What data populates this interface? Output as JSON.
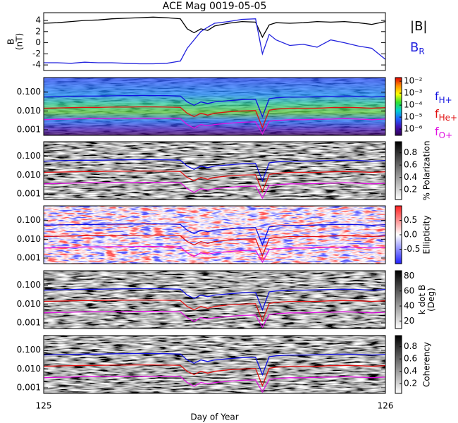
{
  "chart_data": [
    {
      "type": "line",
      "title": "ACE Mag 0019-05-05",
      "ylabel": [
        "B",
        "(nT)"
      ],
      "xlim": [
        125,
        126
      ],
      "ylim": [
        -5,
        5.4
      ],
      "yticks": [
        4,
        2,
        0,
        -2,
        -4
      ],
      "x": [
        125,
        125.04,
        125.08,
        125.12,
        125.16,
        125.2,
        125.24,
        125.28,
        125.32,
        125.36,
        125.4,
        125.42,
        125.44,
        125.46,
        125.48,
        125.5,
        125.54,
        125.58,
        125.62,
        125.64,
        125.66,
        125.68,
        125.72,
        125.76,
        125.8,
        125.84,
        125.88,
        125.92,
        125.96,
        126
      ],
      "series": [
        {
          "name": "|B|",
          "color": "#000000",
          "values": [
            3.5,
            3.6,
            3.8,
            4.0,
            4.1,
            4.3,
            4.4,
            4.5,
            4.6,
            4.5,
            4.3,
            2.5,
            1.8,
            2.5,
            2.2,
            3.0,
            3.5,
            3.8,
            3.7,
            1.0,
            3.2,
            3.6,
            3.5,
            3.6,
            3.8,
            3.7,
            3.8,
            3.6,
            3.3,
            3.8
          ]
        },
        {
          "name": "B",
          "subscript": "R",
          "color": "#2222dd",
          "values": [
            -3.6,
            -3.6,
            -3.7,
            -3.5,
            -3.6,
            -3.6,
            -3.7,
            -3.8,
            -3.8,
            -3.7,
            -3.3,
            -1.0,
            0.5,
            2.0,
            2.8,
            3.5,
            3.8,
            4.2,
            4.3,
            -2.0,
            1.5,
            0.5,
            -0.5,
            -0.3,
            -0.8,
            0.5,
            0.0,
            -0.6,
            -1.0,
            -3.0
          ]
        }
      ]
    },
    {
      "type": "spectrogram",
      "log_y": true,
      "xlim": [
        125,
        126
      ],
      "ylim": [
        0.0005,
        0.6
      ],
      "yticks": [
        {
          "value": 0.1,
          "label": "0.100"
        },
        {
          "value": 0.01,
          "label": "0.010"
        },
        {
          "value": 0.001,
          "label": "0.001"
        }
      ],
      "colorbar": {
        "log": true,
        "clim": [
          3e-07,
          0.02
        ],
        "colors": [
          "#e00000",
          "#ff9000",
          "#ffff00",
          "#30e030",
          "#00d0d0",
          "#2060ff",
          "#4010b0",
          "#300050"
        ],
        "ticks": [
          {
            "value": 0.01,
            "label": "10⁻²"
          },
          {
            "value": 0.001,
            "label": "10⁻³"
          },
          {
            "value": 0.0001,
            "label": "10⁻⁴"
          },
          {
            "value": 1e-05,
            "label": "10⁻⁵"
          },
          {
            "value": 1e-06,
            "label": "10⁻⁶"
          }
        ]
      },
      "x": [
        125,
        125.04,
        125.08,
        125.12,
        125.16,
        125.2,
        125.24,
        125.28,
        125.32,
        125.36,
        125.4,
        125.42,
        125.44,
        125.46,
        125.48,
        125.5,
        125.54,
        125.58,
        125.62,
        125.64,
        125.66,
        125.68,
        125.72,
        125.76,
        125.8,
        125.84,
        125.88,
        125.92,
        125.96,
        126
      ],
      "series": [
        {
          "name": "f",
          "subscript": "H+",
          "color": "#1010e0",
          "values": [
            0.055,
            0.058,
            0.06,
            0.062,
            0.062,
            0.064,
            0.065,
            0.066,
            0.066,
            0.065,
            0.062,
            0.03,
            0.02,
            0.03,
            0.025,
            0.03,
            0.035,
            0.04,
            0.042,
            0.005,
            0.045,
            0.05,
            0.055,
            0.055,
            0.057,
            0.06,
            0.062,
            0.06,
            0.055,
            0.06
          ]
        },
        {
          "name": "f",
          "subscript": "He+",
          "color": "#e01010",
          "values": [
            0.014,
            0.0145,
            0.015,
            0.0155,
            0.0155,
            0.016,
            0.016,
            0.0165,
            0.0165,
            0.016,
            0.0155,
            0.0075,
            0.005,
            0.0075,
            0.006,
            0.0075,
            0.009,
            0.01,
            0.0105,
            0.0013,
            0.011,
            0.0125,
            0.014,
            0.014,
            0.014,
            0.015,
            0.0155,
            0.015,
            0.014,
            0.015
          ]
        },
        {
          "name": "f",
          "subscript": "O+",
          "color": "#e010e0",
          "values": [
            0.0034,
            0.0036,
            0.0037,
            0.0039,
            0.0039,
            0.004,
            0.004,
            0.0041,
            0.0041,
            0.004,
            0.0039,
            0.0019,
            0.0012,
            0.0019,
            0.0016,
            0.0019,
            0.0022,
            0.0025,
            0.0026,
            0.0006,
            0.0028,
            0.0031,
            0.0034,
            0.0034,
            0.0036,
            0.0037,
            0.0039,
            0.0037,
            0.0034,
            0.0037
          ]
        }
      ]
    },
    {
      "type": "spectrogram",
      "log_y": true,
      "xlim": [
        125,
        126
      ],
      "ylim": [
        0.0005,
        0.6
      ],
      "yticks": [
        {
          "value": 0.1,
          "label": "0.100"
        },
        {
          "value": 0.01,
          "label": "0.010"
        },
        {
          "value": 0.001,
          "label": "0.001"
        }
      ],
      "colorbar": {
        "label": [
          "% Polarization"
        ],
        "clim": [
          0.04,
          0.98
        ],
        "colors": [
          "#000000",
          "#ffffff"
        ],
        "ticks": [
          0.8,
          0.6,
          0.4,
          0.2
        ]
      },
      "x": [
        125,
        125.04,
        125.08,
        125.12,
        125.16,
        125.2,
        125.24,
        125.28,
        125.32,
        125.36,
        125.4,
        125.42,
        125.44,
        125.46,
        125.48,
        125.5,
        125.54,
        125.58,
        125.62,
        125.64,
        125.66,
        125.68,
        125.72,
        125.76,
        125.8,
        125.84,
        125.88,
        125.92,
        125.96,
        126
      ],
      "series": [
        {
          "color": "#1010e0",
          "values": [
            0.055,
            0.058,
            0.06,
            0.062,
            0.062,
            0.064,
            0.065,
            0.066,
            0.066,
            0.065,
            0.062,
            0.03,
            0.02,
            0.03,
            0.025,
            0.03,
            0.035,
            0.04,
            0.042,
            0.005,
            0.045,
            0.05,
            0.055,
            0.055,
            0.057,
            0.06,
            0.062,
            0.06,
            0.055,
            0.06
          ]
        },
        {
          "color": "#e01010",
          "values": [
            0.014,
            0.0145,
            0.015,
            0.0155,
            0.0155,
            0.016,
            0.016,
            0.0165,
            0.0165,
            0.016,
            0.0155,
            0.0075,
            0.005,
            0.0075,
            0.006,
            0.0075,
            0.009,
            0.01,
            0.0105,
            0.0013,
            0.011,
            0.0125,
            0.014,
            0.014,
            0.014,
            0.015,
            0.0155,
            0.015,
            0.014,
            0.015
          ]
        },
        {
          "color": "#e010e0",
          "values": [
            0.0034,
            0.0036,
            0.0037,
            0.0039,
            0.0039,
            0.004,
            0.004,
            0.0041,
            0.0041,
            0.004,
            0.0039,
            0.0019,
            0.0012,
            0.0019,
            0.0016,
            0.0019,
            0.0022,
            0.0025,
            0.0026,
            0.0006,
            0.0028,
            0.0031,
            0.0034,
            0.0034,
            0.0036,
            0.0037,
            0.0039,
            0.0037,
            0.0034,
            0.0037
          ]
        }
      ]
    },
    {
      "type": "spectrogram",
      "log_y": true,
      "xlim": [
        125,
        126
      ],
      "ylim": [
        0.0005,
        0.6
      ],
      "yticks": [
        {
          "value": 0.1,
          "label": "0.100"
        },
        {
          "value": 0.01,
          "label": "0.010"
        },
        {
          "value": 0.001,
          "label": "0.001"
        }
      ],
      "colorbar": {
        "label": [
          "Ellipticity"
        ],
        "clim": [
          -1,
          1
        ],
        "colors": [
          "#ff2020",
          "#ffffff",
          "#2020ff"
        ],
        "ticks": [
          0.5,
          {
            "value": 0,
            "label": "0.0"
          },
          -0.5
        ]
      },
      "x": [
        125,
        125.04,
        125.08,
        125.12,
        125.16,
        125.2,
        125.24,
        125.28,
        125.32,
        125.36,
        125.4,
        125.42,
        125.44,
        125.46,
        125.48,
        125.5,
        125.54,
        125.58,
        125.62,
        125.64,
        125.66,
        125.68,
        125.72,
        125.76,
        125.8,
        125.84,
        125.88,
        125.92,
        125.96,
        126
      ],
      "series": [
        {
          "color": "#1010e0",
          "values": [
            0.055,
            0.058,
            0.06,
            0.062,
            0.062,
            0.064,
            0.065,
            0.066,
            0.066,
            0.065,
            0.062,
            0.03,
            0.02,
            0.03,
            0.025,
            0.03,
            0.035,
            0.04,
            0.042,
            0.005,
            0.045,
            0.05,
            0.055,
            0.055,
            0.057,
            0.06,
            0.062,
            0.06,
            0.055,
            0.06
          ]
        },
        {
          "color": "#e01010",
          "values": [
            0.014,
            0.0145,
            0.015,
            0.0155,
            0.0155,
            0.016,
            0.016,
            0.0165,
            0.0165,
            0.016,
            0.0155,
            0.0075,
            0.005,
            0.0075,
            0.006,
            0.0075,
            0.009,
            0.01,
            0.0105,
            0.0013,
            0.011,
            0.0125,
            0.014,
            0.014,
            0.014,
            0.015,
            0.0155,
            0.015,
            0.014,
            0.015
          ]
        },
        {
          "color": "#e010e0",
          "values": [
            0.0034,
            0.0036,
            0.0037,
            0.0039,
            0.0039,
            0.004,
            0.004,
            0.0041,
            0.0041,
            0.004,
            0.0039,
            0.0019,
            0.0012,
            0.0019,
            0.0016,
            0.0019,
            0.0022,
            0.0025,
            0.0026,
            0.0006,
            0.0028,
            0.0031,
            0.0034,
            0.0034,
            0.0036,
            0.0037,
            0.0039,
            0.0037,
            0.0034,
            0.0037
          ]
        }
      ]
    },
    {
      "type": "spectrogram",
      "log_y": true,
      "xlim": [
        125,
        126
      ],
      "ylim": [
        0.0005,
        0.6
      ],
      "yticks": [
        {
          "value": 0.1,
          "label": "0.100"
        },
        {
          "value": 0.01,
          "label": "0.010"
        },
        {
          "value": 0.001,
          "label": "0.001"
        }
      ],
      "colorbar": {
        "label": [
          "k dot B",
          "(Deg)"
        ],
        "clim": [
          10,
          87
        ],
        "colors": [
          "#000000",
          "#ffffff"
        ],
        "ticks": [
          80,
          60,
          40,
          20
        ]
      },
      "x": [
        125,
        125.04,
        125.08,
        125.12,
        125.16,
        125.2,
        125.24,
        125.28,
        125.32,
        125.36,
        125.4,
        125.42,
        125.44,
        125.46,
        125.48,
        125.5,
        125.54,
        125.58,
        125.62,
        125.64,
        125.66,
        125.68,
        125.72,
        125.76,
        125.8,
        125.84,
        125.88,
        125.92,
        125.96,
        126
      ],
      "series": [
        {
          "color": "#1010e0",
          "values": [
            0.055,
            0.058,
            0.06,
            0.062,
            0.062,
            0.064,
            0.065,
            0.066,
            0.066,
            0.065,
            0.062,
            0.03,
            0.02,
            0.03,
            0.025,
            0.03,
            0.035,
            0.04,
            0.042,
            0.005,
            0.045,
            0.05,
            0.055,
            0.055,
            0.057,
            0.06,
            0.062,
            0.06,
            0.055,
            0.06
          ]
        },
        {
          "color": "#e01010",
          "values": [
            0.014,
            0.0145,
            0.015,
            0.0155,
            0.0155,
            0.016,
            0.016,
            0.0165,
            0.0165,
            0.016,
            0.0155,
            0.0075,
            0.005,
            0.0075,
            0.006,
            0.0075,
            0.009,
            0.01,
            0.0105,
            0.0013,
            0.011,
            0.0125,
            0.014,
            0.014,
            0.014,
            0.015,
            0.0155,
            0.015,
            0.014,
            0.015
          ]
        },
        {
          "color": "#e010e0",
          "values": [
            0.0034,
            0.0036,
            0.0037,
            0.0039,
            0.0039,
            0.004,
            0.004,
            0.0041,
            0.0041,
            0.004,
            0.0039,
            0.0019,
            0.0012,
            0.0019,
            0.0016,
            0.0019,
            0.0022,
            0.0025,
            0.0026,
            0.0006,
            0.0028,
            0.0031,
            0.0034,
            0.0034,
            0.0036,
            0.0037,
            0.0039,
            0.0037,
            0.0034,
            0.0037
          ]
        }
      ]
    },
    {
      "type": "spectrogram",
      "log_y": true,
      "xlim": [
        125,
        126
      ],
      "ylim": [
        0.0005,
        0.6
      ],
      "yticks": [
        {
          "value": 0.1,
          "label": "0.100"
        },
        {
          "value": 0.01,
          "label": "0.010"
        },
        {
          "value": 0.001,
          "label": "0.001"
        }
      ],
      "colorbar": {
        "label": [
          "Coherency"
        ],
        "clim": [
          0.04,
          0.98
        ],
        "colors": [
          "#000000",
          "#ffffff"
        ],
        "ticks": [
          0.8,
          0.6,
          0.4,
          0.2
        ]
      },
      "xlabel": "Day of Year",
      "xticks": [
        125,
        126
      ],
      "x": [
        125,
        125.04,
        125.08,
        125.12,
        125.16,
        125.2,
        125.24,
        125.28,
        125.32,
        125.36,
        125.4,
        125.42,
        125.44,
        125.46,
        125.48,
        125.5,
        125.54,
        125.58,
        125.62,
        125.64,
        125.66,
        125.68,
        125.72,
        125.76,
        125.8,
        125.84,
        125.88,
        125.92,
        125.96,
        126
      ],
      "series": [
        {
          "color": "#1010e0",
          "values": [
            0.055,
            0.058,
            0.06,
            0.062,
            0.062,
            0.064,
            0.065,
            0.066,
            0.066,
            0.065,
            0.062,
            0.03,
            0.02,
            0.03,
            0.025,
            0.03,
            0.035,
            0.04,
            0.042,
            0.005,
            0.045,
            0.05,
            0.055,
            0.055,
            0.057,
            0.06,
            0.062,
            0.06,
            0.055,
            0.06
          ]
        },
        {
          "color": "#e01010",
          "values": [
            0.014,
            0.0145,
            0.015,
            0.0155,
            0.0155,
            0.016,
            0.016,
            0.0165,
            0.0165,
            0.016,
            0.0155,
            0.0075,
            0.005,
            0.0075,
            0.006,
            0.0075,
            0.009,
            0.01,
            0.0105,
            0.0013,
            0.011,
            0.0125,
            0.014,
            0.014,
            0.014,
            0.015,
            0.0155,
            0.015,
            0.014,
            0.015
          ]
        },
        {
          "color": "#e010e0",
          "values": [
            0.0034,
            0.0036,
            0.0037,
            0.0039,
            0.0039,
            0.004,
            0.004,
            0.0041,
            0.0041,
            0.004,
            0.0039,
            0.0019,
            0.0012,
            0.0019,
            0.0016,
            0.0019,
            0.0022,
            0.0025,
            0.0026,
            0.0006,
            0.0028,
            0.0031,
            0.0034,
            0.0034,
            0.0036,
            0.0037,
            0.0039,
            0.0037,
            0.0034,
            0.0037
          ]
        }
      ]
    }
  ]
}
